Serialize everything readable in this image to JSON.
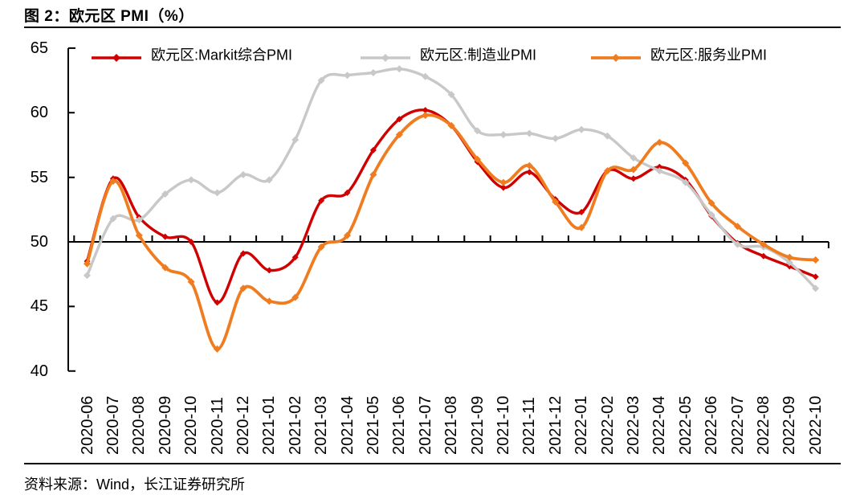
{
  "figure": {
    "title": "图 2：欧元区 PMI（%）",
    "source": "资料来源：Wind，长江证券研究所"
  },
  "chart_data": {
    "type": "line",
    "title": "欧元区 PMI（%）",
    "x": [
      "2020-06",
      "2020-07",
      "2020-08",
      "2020-09",
      "2020-10",
      "2020-11",
      "2020-12",
      "2021-01",
      "2021-02",
      "2021-03",
      "2021-04",
      "2021-05",
      "2021-06",
      "2021-07",
      "2021-08",
      "2021-09",
      "2021-10",
      "2021-11",
      "2021-12",
      "2022-01",
      "2022-02",
      "2022-03",
      "2022-04",
      "2022-05",
      "2022-06",
      "2022-07",
      "2022-08",
      "2022-09",
      "2022-10"
    ],
    "series": [
      {
        "name": "欧元区:Markit综合PMI",
        "color": "#D00000",
        "values": [
          48.5,
          54.9,
          51.9,
          50.4,
          50.0,
          45.3,
          49.1,
          47.8,
          48.8,
          53.2,
          53.8,
          57.1,
          59.5,
          60.2,
          59.0,
          56.2,
          54.2,
          55.4,
          53.3,
          52.3,
          55.5,
          54.9,
          55.8,
          54.8,
          52.0,
          49.9,
          48.9,
          48.1,
          47.3
        ]
      },
      {
        "name": "欧元区:制造业PMI",
        "color": "#C8C8C8",
        "values": [
          47.4,
          51.8,
          51.7,
          53.7,
          54.8,
          53.8,
          55.2,
          54.8,
          57.9,
          62.5,
          62.9,
          63.1,
          63.4,
          62.8,
          61.4,
          58.6,
          58.3,
          58.4,
          58.0,
          58.7,
          58.2,
          56.5,
          55.5,
          54.6,
          52.1,
          49.8,
          49.6,
          48.4,
          46.4
        ]
      },
      {
        "name": "欧元区:服务业PMI",
        "color": "#F07C20",
        "values": [
          48.3,
          54.7,
          50.5,
          48.0,
          46.9,
          41.7,
          46.4,
          45.4,
          45.7,
          49.6,
          50.5,
          55.2,
          58.3,
          59.8,
          59.0,
          56.4,
          54.6,
          55.9,
          53.1,
          51.1,
          55.5,
          55.6,
          57.7,
          56.1,
          53.0,
          51.2,
          49.8,
          48.8,
          48.6
        ]
      }
    ],
    "ylim": [
      40,
      65
    ],
    "yticks": [
      65,
      60,
      55,
      50,
      45,
      40
    ],
    "x_axis_position": 50,
    "grid": false,
    "legend_position": "top",
    "marker": "diamond"
  }
}
